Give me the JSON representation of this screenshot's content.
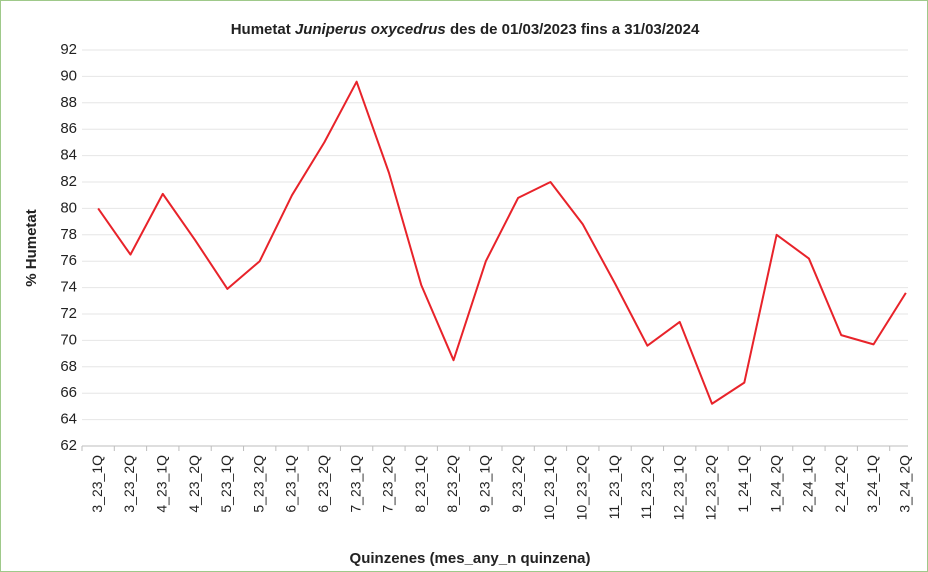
{
  "chart_data": {
    "type": "line",
    "title": [
      "Humetat ",
      "Juniperus oxycedrus",
      " des de 01/03/2023 fins a 31/03/2024"
    ],
    "x_label": "Quinzenes (mes_any_n quinzena)",
    "y_label": "% Humetat",
    "categories": [
      "3_23_1Q",
      "3_23_2Q",
      "4_23_1Q",
      "4_23_2Q",
      "5_23_1Q",
      "5_23_2Q",
      "6_23_1Q",
      "6_23_2Q",
      "7_23_1Q",
      "7_23_2Q",
      "8_23_1Q",
      "8_23_2Q",
      "9_23_1Q",
      "9_23_2Q",
      "10_23_1Q",
      "10_23_2Q",
      "11_23_1Q",
      "11_23_2Q",
      "12_23_1Q",
      "12_23_2Q",
      "1_24_1Q",
      "1_24_2Q",
      "2_24_1Q",
      "2_24_2Q",
      "3_24_1Q",
      "3_24_2Q"
    ],
    "series": [
      {
        "name": "% Humetat",
        "color": "#e8232a",
        "values": [
          80,
          76.5,
          81.1,
          77.6,
          73.9,
          76,
          81,
          85,
          89.6,
          82.7,
          74.2,
          68.5,
          76,
          80.8,
          82,
          78.8,
          74.3,
          69.6,
          71.4,
          65.2,
          66.8,
          78,
          76.2,
          70.4,
          69.7,
          73.6
        ]
      }
    ],
    "ylim": [
      62,
      92
    ],
    "yticks": [
      62,
      64,
      66,
      68,
      70,
      72,
      74,
      76,
      78,
      80,
      82,
      84,
      86,
      88,
      90,
      92
    ],
    "grid": true
  }
}
